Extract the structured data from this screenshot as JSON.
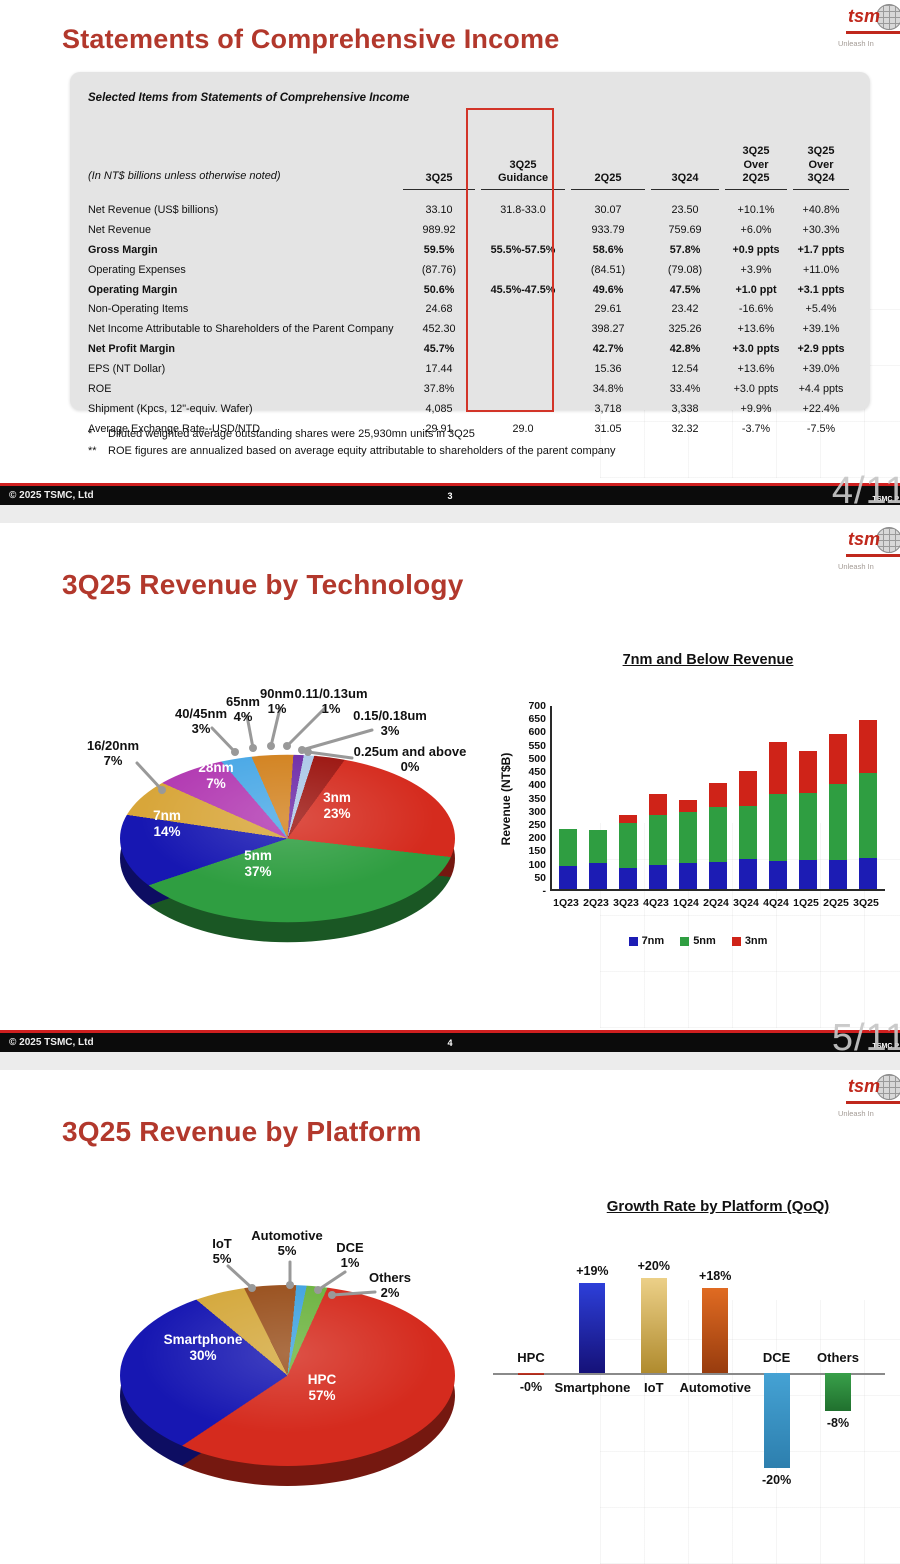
{
  "brand": {
    "logo_text": "tsm",
    "tagline": "Unleash In"
  },
  "slide1": {
    "title": "Statements of Comprehensive Income",
    "table": {
      "caption": "Selected Items from Statements of Comprehensive Income",
      "unit_note": "(In NT$ billions unless otherwise noted)",
      "highlight_column": "3Q25",
      "columns": [
        [
          "3Q25"
        ],
        [
          "3Q25",
          "Guidance"
        ],
        [
          "2Q25"
        ],
        [
          "3Q24"
        ],
        [
          "3Q25",
          "Over",
          "2Q25"
        ],
        [
          "3Q25",
          "Over",
          "3Q24"
        ]
      ],
      "rows": [
        {
          "label": "Net Revenue (US$ billions)",
          "bold": false,
          "values": [
            "33.10",
            "31.8-33.0",
            "30.07",
            "23.50",
            "+10.1%",
            "+40.8%"
          ]
        },
        {
          "label": "Net Revenue",
          "bold": false,
          "values": [
            "989.92",
            "",
            "933.79",
            "759.69",
            "+6.0%",
            "+30.3%"
          ]
        },
        {
          "label": "Gross Margin",
          "bold": true,
          "values": [
            "59.5%",
            "55.5%-57.5%",
            "58.6%",
            "57.8%",
            "+0.9 ppts",
            "+1.7 ppts"
          ]
        },
        {
          "label": "Operating Expenses",
          "bold": false,
          "values": [
            "(87.76)",
            "",
            "(84.51)",
            "(79.08)",
            "+3.9%",
            "+11.0%"
          ]
        },
        {
          "label": "Operating Margin",
          "bold": true,
          "values": [
            "50.6%",
            "45.5%-47.5%",
            "49.6%",
            "47.5%",
            "+1.0 ppt",
            "+3.1 ppts"
          ]
        },
        {
          "label": "Non-Operating Items",
          "bold": false,
          "values": [
            "24.68",
            "",
            "29.61",
            "23.42",
            "-16.6%",
            "+5.4%"
          ]
        },
        {
          "label": "Net Income Attributable to Shareholders of the Parent Company",
          "bold": false,
          "values": [
            "452.30",
            "",
            "398.27",
            "325.26",
            "+13.6%",
            "+39.1%"
          ]
        },
        {
          "label": "Net Profit Margin",
          "bold": true,
          "values": [
            "45.7%",
            "",
            "42.7%",
            "42.8%",
            "+3.0 ppts",
            "+2.9 ppts"
          ]
        },
        {
          "label": "EPS (NT Dollar)",
          "bold": false,
          "values": [
            "17.44",
            "",
            "15.36",
            "12.54",
            "+13.6%",
            "+39.0%"
          ]
        },
        {
          "label": "ROE",
          "bold": false,
          "values": [
            "37.8%",
            "",
            "34.8%",
            "33.4%",
            "+3.0 ppts",
            "+4.4 ppts"
          ]
        },
        {
          "label": "Shipment (Kpcs, 12\"-equiv. Wafer)",
          "bold": false,
          "values": [
            "4,085",
            "",
            "3,718",
            "3,338",
            "+9.9%",
            "+22.4%"
          ]
        },
        {
          "label": "Average Exchange Rate--USD/NTD",
          "bold": false,
          "values": [
            "29.91",
            "29.0",
            "31.05",
            "32.32",
            "-3.7%",
            "-7.5%"
          ]
        }
      ]
    },
    "footnotes": [
      {
        "marker": "*",
        "text": "Diluted weighted average outstanding shares were 25,930mn units in 3Q25"
      },
      {
        "marker": "**",
        "text": "ROE figures are annualized based on average equity attributable to shareholders of the parent company"
      }
    ],
    "footer": {
      "copyright": "© 2025 TSMC, Ltd",
      "page": "3",
      "overlay": "4/11",
      "corner": "TSMC P"
    }
  },
  "slide2": {
    "title": "3Q25 Revenue by Technology",
    "footer": {
      "copyright": "© 2025 TSMC, Ltd",
      "page": "4",
      "overlay": "5/11",
      "corner": "TSMC P"
    }
  },
  "slide3": {
    "title": "3Q25 Revenue by Platform"
  },
  "chart_data": [
    {
      "id": "technology_pie",
      "type": "pie",
      "title": "3Q25 Revenue by Technology",
      "start_angle": 20,
      "slices": [
        {
          "label": "3nm",
          "pct": 23,
          "pct_label": "23%",
          "color": "#d52b1e"
        },
        {
          "label": "5nm",
          "pct": 37,
          "pct_label": "37%",
          "color": "#2f9e41"
        },
        {
          "label": "7nm",
          "pct": 14,
          "pct_label": "14%",
          "color": "#1717b2"
        },
        {
          "label": "16/20nm",
          "pct": 7,
          "pct_label": "7%",
          "color": "#d8a63a"
        },
        {
          "label": "28nm",
          "pct": 7,
          "pct_label": "7%",
          "color": "#b23ab2"
        },
        {
          "label": "40/45nm",
          "pct": 3,
          "pct_label": "3%",
          "color": "#49a8e6"
        },
        {
          "label": "65nm",
          "pct": 4,
          "pct_label": "4%",
          "color": "#d2821f"
        },
        {
          "label": "90nm",
          "pct": 1,
          "pct_label": "1%",
          "color": "#6f2da8"
        },
        {
          "label": "0.11/0.13um",
          "pct": 1,
          "pct_label": "1%",
          "color": "#adc9e8"
        },
        {
          "label": "0.15/0.18um",
          "pct": 3,
          "pct_label": "3%",
          "color": "#9c1510"
        },
        {
          "label": "0.25um and above",
          "pct": 0,
          "pct_label": "0%",
          "color": "#777777"
        }
      ]
    },
    {
      "id": "wafer_revenue",
      "type": "bar",
      "stacked": true,
      "title": "7nm and Below Revenue",
      "ylabel": "Revenue (NT$B)",
      "ylim": [
        0,
        700
      ],
      "yticks": [
        "700",
        "650",
        "600",
        "550",
        "500",
        "450",
        "400",
        "350",
        "300",
        "250",
        "200",
        "150",
        "100",
        "50",
        "-"
      ],
      "categories": [
        "1Q23",
        "2Q23",
        "3Q23",
        "4Q23",
        "1Q24",
        "2Q24",
        "3Q24",
        "4Q24",
        "1Q25",
        "2Q25",
        "3Q25"
      ],
      "series": [
        {
          "name": "7nm",
          "color": "#1c1cb4",
          "values": [
            88,
            97,
            78,
            92,
            100,
            102,
            112,
            105,
            110,
            110,
            117
          ]
        },
        {
          "name": "5nm",
          "color": "#2f9e41",
          "values": [
            140,
            128,
            172,
            188,
            193,
            208,
            203,
            255,
            253,
            288,
            322
          ]
        },
        {
          "name": "3nm",
          "color": "#cf2318",
          "values": [
            0,
            0,
            30,
            80,
            44,
            90,
            132,
            196,
            160,
            190,
            200
          ]
        }
      ],
      "legend_position": "bottom"
    },
    {
      "id": "platform_pie",
      "type": "pie",
      "title": "3Q25 Revenue by Platform",
      "start_angle": -33,
      "slices": [
        {
          "label": "IoT",
          "pct": 5,
          "pct_label": "5%",
          "color": "#d4a83c"
        },
        {
          "label": "Automotive",
          "pct": 5,
          "pct_label": "5%",
          "color": "#99501d"
        },
        {
          "label": "DCE",
          "pct": 1,
          "pct_label": "1%",
          "color": "#41a3e0"
        },
        {
          "label": "Others",
          "pct": 2,
          "pct_label": "2%",
          "color": "#6cb33f"
        },
        {
          "label": "HPC",
          "pct": 57,
          "pct_label": "57%",
          "color": "#d52b1e"
        },
        {
          "label": "Smartphone",
          "pct": 30,
          "pct_label": "30%",
          "color": "#1717b2"
        }
      ]
    },
    {
      "id": "platform_growth",
      "type": "bar",
      "title": "Growth Rate by Platform (QoQ)",
      "categories": [
        "HPC",
        "Smartphone",
        "IoT",
        "Automotive",
        "DCE",
        "Others"
      ],
      "values": [
        -0.2,
        19,
        20,
        18,
        -20,
        -8
      ],
      "value_labels": [
        "-0%",
        "+19%",
        "+20%",
        "+18%",
        "-20%",
        "-8%"
      ],
      "colors": [
        [
          "#cc3a28",
          "#992818"
        ],
        [
          "#2d3fd9",
          "#151178"
        ],
        [
          "#ecd088",
          "#b08b2e"
        ],
        [
          "#e06b22",
          "#983c0e"
        ],
        [
          "#45a2d4",
          "#2d7fae"
        ],
        [
          "#39a04a",
          "#20702e"
        ]
      ]
    }
  ]
}
